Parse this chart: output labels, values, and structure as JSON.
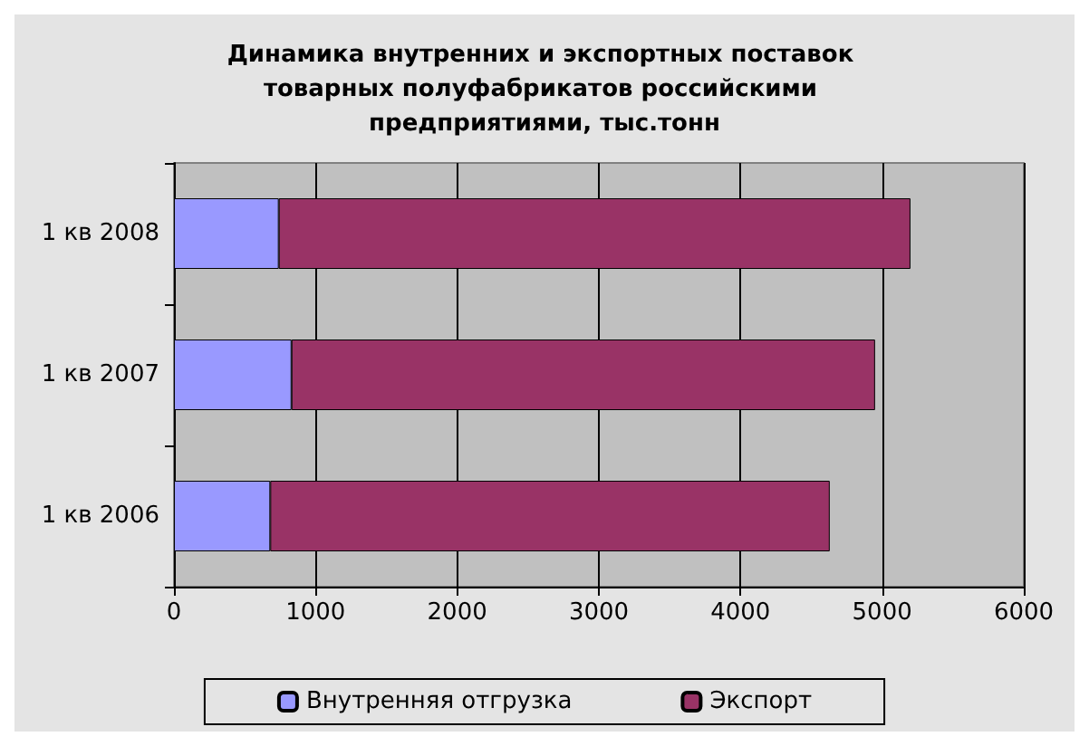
{
  "chart_data": {
    "type": "bar",
    "title": "Динамика внутренних и экспортных поставок товарных полуфабрикатов российскими предприятиями, тыс.тонн",
    "orientation": "horizontal",
    "stacked": true,
    "categories": [
      "1 кв 2008",
      "1 кв 2007",
      "1 кв 2006"
    ],
    "series": [
      {
        "name": "Внутренняя отгрузка",
        "color": "#9999ff",
        "values": [
          740,
          830,
          680
        ]
      },
      {
        "name": "Экспорт",
        "color": "#993366",
        "values": [
          4460,
          4120,
          3950
        ]
      }
    ],
    "xlim": [
      0,
      6000
    ],
    "xticks": [
      0,
      1000,
      2000,
      3000,
      4000,
      5000,
      6000
    ],
    "grid": "x",
    "legend": "bottom"
  }
}
